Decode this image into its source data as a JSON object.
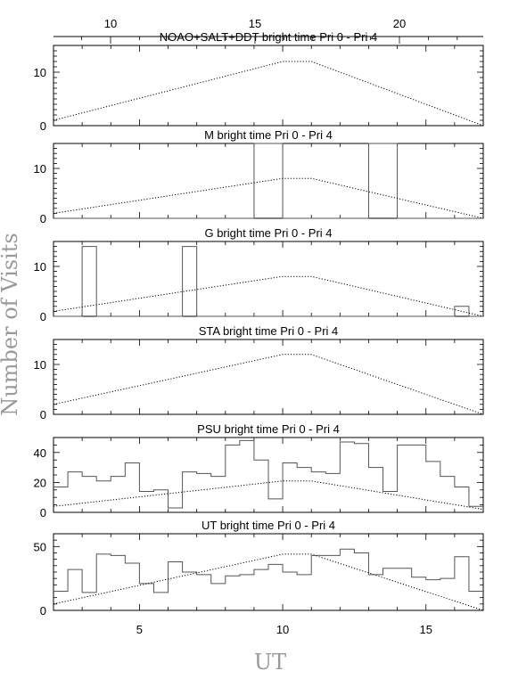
{
  "figure": {
    "ylabel": "Number of Visits",
    "xlabel": "UT",
    "top_axis_ticks": [
      "10",
      "15",
      "20"
    ],
    "bottom_axis_ticks": [
      "5",
      "10",
      "15"
    ]
  },
  "chart_data": [
    {
      "type": "area",
      "title": "NOAO+SALT+DDT    bright time Pri 0 - Pri 4",
      "x_range": [
        2,
        17
      ],
      "ylim": [
        0,
        15
      ],
      "y_ticks": [
        "0",
        "10"
      ],
      "series": [
        {
          "values": []
        },
        {
          "x": [
            2,
            10,
            11,
            17
          ],
          "values": [
            1,
            12,
            12,
            0
          ]
        }
      ]
    },
    {
      "type": "area",
      "title": "M    bright time Pri 0 - Pri 4",
      "x_range": [
        2,
        17
      ],
      "ylim": [
        0,
        15
      ],
      "y_ticks": [
        "0",
        "10"
      ],
      "series": [
        {
          "bin_start": 2,
          "bin_width": 0.5,
          "values": [
            0,
            0,
            0,
            0,
            0,
            0,
            0,
            0,
            0,
            0,
            0,
            0,
            0,
            0,
            15,
            15,
            0,
            0,
            0,
            0,
            0,
            0,
            15,
            15,
            0,
            0,
            0,
            0,
            0,
            0
          ]
        },
        {
          "x": [
            2,
            10,
            11,
            17
          ],
          "values": [
            1,
            8,
            8,
            0
          ]
        }
      ]
    },
    {
      "type": "area",
      "title": "G    bright time Pri 0 - Pri 4",
      "x_range": [
        2,
        17
      ],
      "ylim": [
        0,
        15
      ],
      "y_ticks": [
        "0",
        "10"
      ],
      "series": [
        {
          "bin_start": 2,
          "bin_width": 0.5,
          "values": [
            0,
            0,
            14,
            0,
            0,
            0,
            0,
            0,
            0,
            14,
            0,
            0,
            0,
            0,
            0,
            0,
            0,
            0,
            0,
            0,
            0,
            0,
            0,
            0,
            0,
            0,
            0,
            0,
            2,
            0
          ]
        },
        {
          "x": [
            2,
            10,
            11,
            17
          ],
          "values": [
            1,
            8,
            8,
            0
          ]
        }
      ]
    },
    {
      "type": "area",
      "title": "STA    bright time Pri 0 - Pri 4",
      "x_range": [
        2,
        17
      ],
      "ylim": [
        0,
        15
      ],
      "y_ticks": [
        "0",
        "10"
      ],
      "series": [
        {
          "values": []
        },
        {
          "x": [
            2,
            10,
            11,
            17
          ],
          "values": [
            2,
            12,
            12,
            0
          ]
        }
      ]
    },
    {
      "type": "area",
      "title": "PSU    bright time Pri 0 - Pri 4",
      "x_range": [
        2,
        17
      ],
      "ylim": [
        0,
        50
      ],
      "y_ticks": [
        "0",
        "20",
        "40"
      ],
      "series": [
        {
          "bin_start": 2,
          "bin_width": 0.5,
          "values": [
            17,
            27,
            24,
            21,
            24,
            33,
            14,
            15,
            3,
            27,
            26,
            24,
            45,
            48,
            35,
            9,
            33,
            30,
            27,
            26,
            47,
            46,
            30,
            14,
            45,
            45,
            34,
            24,
            17,
            4
          ]
        },
        {
          "x": [
            2,
            10,
            11,
            17
          ],
          "values": [
            4,
            21,
            21,
            2
          ]
        }
      ]
    },
    {
      "type": "area",
      "title": "UT    bright time Pri 0 - Pri 4",
      "x_range": [
        2,
        17
      ],
      "ylim": [
        0,
        60
      ],
      "y_ticks": [
        "0",
        "50"
      ],
      "series": [
        {
          "bin_start": 2,
          "bin_width": 0.5,
          "values": [
            15,
            32,
            14,
            44,
            43,
            37,
            21,
            14,
            38,
            30,
            28,
            21,
            27,
            28,
            32,
            36,
            30,
            28,
            43,
            43,
            48,
            45,
            28,
            33,
            33,
            26,
            24,
            25,
            42,
            15
          ]
        },
        {
          "x": [
            2,
            10,
            11,
            17
          ],
          "values": [
            5,
            44,
            44,
            0
          ]
        }
      ]
    }
  ]
}
